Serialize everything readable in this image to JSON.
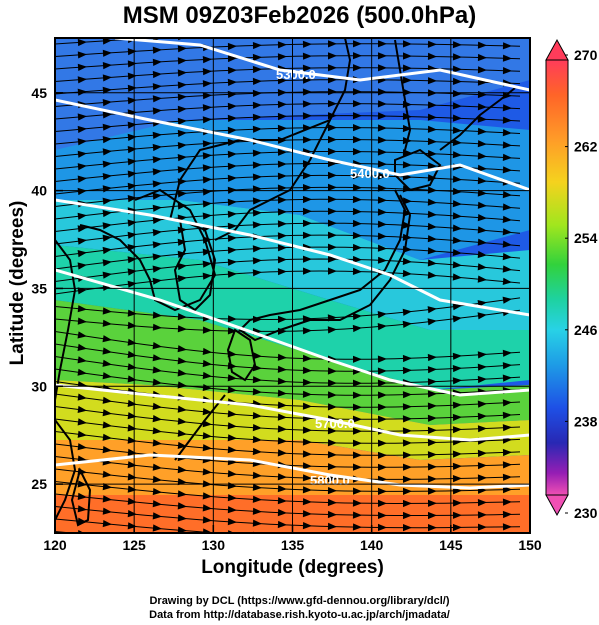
{
  "title": "MSM 09Z03Feb2026 (500.0hPa)",
  "xlabel": "Longitude (degrees)",
  "ylabel": "Latitude  (degrees)",
  "credit_line1": "Drawing by DCL (https://www.gfd-dennou.org/library/dcl/)",
  "credit_line2": "Data from http://database.rish.kyoto-u.ac.jp/arch/jmadata/",
  "map": {
    "lon_range": [
      120,
      150
    ],
    "lat_range": [
      22.5,
      47.8
    ],
    "x_ticks": [
      "120",
      "125",
      "130",
      "135",
      "140",
      "145",
      "150"
    ],
    "y_ticks": [
      "25",
      "30",
      "35",
      "40",
      "45"
    ],
    "colorbar": {
      "min": 230,
      "max": 270,
      "tick_labels": [
        "270",
        "262",
        "254",
        "246",
        "238",
        "230"
      ],
      "colors": [
        "#f03c6e",
        "#ff5a28",
        "#ff9628",
        "#f2d21e",
        "#b4e61e",
        "#3cd23c",
        "#1ed2aa",
        "#28d2e6",
        "#1e9ce6",
        "#1e5ae6",
        "#2d2dc8",
        "#8c1eb4",
        "#e650b4"
      ]
    },
    "contours": [
      {
        "label": "5300.0"
      },
      {
        "label": "5400.0"
      },
      {
        "label": "5700.0"
      },
      {
        "label": "5800.0"
      }
    ],
    "coast_color": "#000000",
    "contour_color": "#ffffff"
  }
}
